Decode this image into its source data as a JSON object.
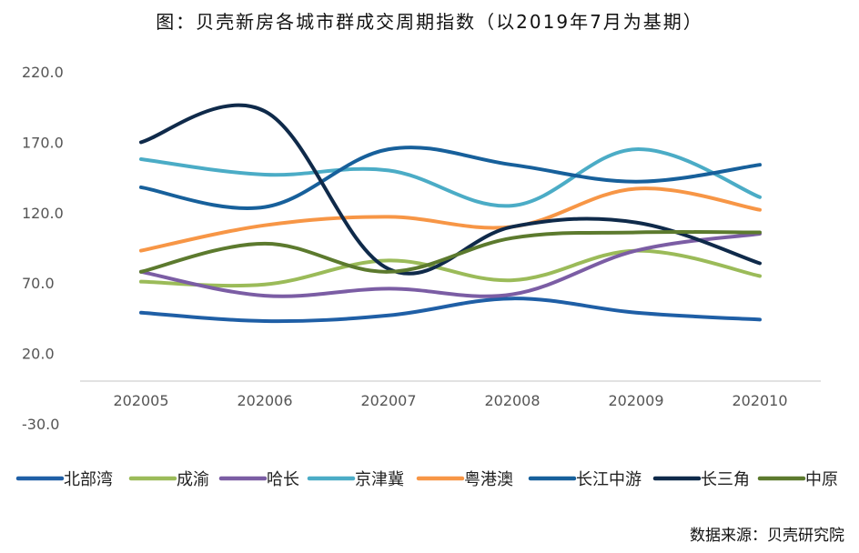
{
  "chart_data": {
    "type": "line",
    "title": "图：贝壳新房各城市群成交周期指数（以2019年7月为基期）",
    "xlabel": "",
    "ylabel": "",
    "categories": [
      "202005",
      "202006",
      "202007",
      "202008",
      "202009",
      "202010"
    ],
    "y_ticks": [
      "220.0",
      "170.0",
      "120.0",
      "70.0",
      "20.0",
      "-30.0"
    ],
    "ylim": [
      -30,
      220
    ],
    "grid": false,
    "legend_position": "bottom",
    "series": [
      {
        "name": "北部湾",
        "color": "#1F5FA6",
        "values": [
          49,
          43,
          47,
          59,
          49,
          44
        ]
      },
      {
        "name": "成渝",
        "color": "#9BBB59",
        "values": [
          71,
          69,
          86,
          72,
          93,
          75
        ]
      },
      {
        "name": "哈长",
        "color": "#7B5DA4",
        "values": [
          78,
          61,
          66,
          62,
          93,
          105
        ]
      },
      {
        "name": "京津冀",
        "color": "#4BACC6",
        "values": [
          158,
          147,
          150,
          125,
          165,
          131
        ]
      },
      {
        "name": "粤港澳",
        "color": "#F79646",
        "values": [
          93,
          111,
          117,
          110,
          137,
          122
        ]
      },
      {
        "name": "长江中游",
        "color": "#17609B",
        "values": [
          138,
          124,
          165,
          154,
          142,
          154
        ]
      },
      {
        "name": "长三角",
        "color": "#0F2A4A",
        "values": [
          170,
          192,
          80,
          110,
          113,
          84
        ]
      },
      {
        "name": "中原",
        "color": "#5C7A2E",
        "values": [
          78,
          98,
          78,
          102,
          106,
          106
        ]
      }
    ]
  },
  "source_note": "数据来源：贝壳研究院"
}
